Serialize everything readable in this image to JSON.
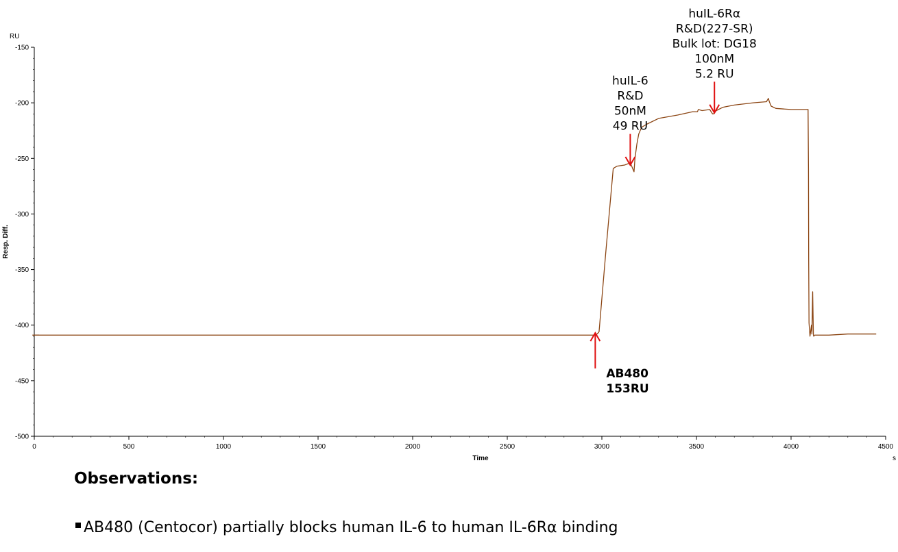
{
  "chart_data": {
    "type": "line",
    "xlabel": "Time",
    "ylabel": "Resp. Diff.",
    "x_unit": "s",
    "y_unit": "RU",
    "xlim": [
      0,
      4500
    ],
    "ylim": [
      -500,
      -150
    ],
    "x_ticks": [
      0,
      500,
      1000,
      1500,
      2000,
      2500,
      3000,
      3500,
      4000,
      4500
    ],
    "y_ticks": [
      -150,
      -200,
      -250,
      -300,
      -350,
      -400,
      -450,
      -500
    ],
    "grid": false,
    "line_color": "#8B4513",
    "arrow_color": "#e01010",
    "series": [
      {
        "x": [
          -10,
          20,
          2940,
          2960,
          2975,
          2985,
          3020,
          3060,
          3080,
          3120,
          3150,
          3160,
          3165,
          3170,
          3175,
          3185,
          3195,
          3210,
          3240,
          3300,
          3400,
          3480,
          3500,
          3505,
          3510,
          3530,
          3570,
          3585,
          3590,
          3595,
          3605,
          3640,
          3700,
          3800,
          3870,
          3880,
          3885,
          3895,
          3920,
          4000,
          4090,
          4092,
          4093,
          4095,
          4100,
          4108,
          4110,
          4114,
          4118,
          4120,
          4125,
          4140,
          4200,
          4300,
          4450
        ],
        "y": [
          -409,
          -409,
          -409,
          -409,
          -408,
          -406,
          -336,
          -259,
          -257,
          -256,
          -254,
          -258,
          -260,
          -262,
          -250,
          -237,
          -228,
          -222,
          -219,
          -214,
          -211,
          -208,
          -208,
          -208,
          -206,
          -207,
          -206,
          -210,
          -210,
          -209,
          -207,
          -204,
          -202,
          -200,
          -199,
          -196,
          -199,
          -203,
          -205,
          -206,
          -206,
          -260,
          -340,
          -398,
          -410,
          -400,
          -408,
          -370,
          -409,
          -410,
          -409,
          -409,
          -409,
          -408,
          -408
        ]
      }
    ],
    "annotations": [
      {
        "lines": [
          "AB480",
          "153RU"
        ],
        "bold": true,
        "arrow_x": 2965,
        "arrow_tip_y": -407,
        "arrow_tail_y": -439,
        "direction": "up"
      },
      {
        "lines": [
          "huIL-6",
          "R&D",
          "50nM",
          "49 RU"
        ],
        "bold": false,
        "arrow_x": 3150,
        "arrow_tip_y": -256,
        "arrow_tail_y": -228,
        "direction": "down"
      },
      {
        "lines": [
          "huIL-6Rα",
          "R&D(227-SR)",
          "Bulk lot: DG18",
          "100nM",
          "5.2 RU"
        ],
        "bold": false,
        "arrow_x": 3595,
        "arrow_tip_y": -209,
        "arrow_tail_y": -181,
        "direction": "down"
      }
    ]
  },
  "observations": {
    "heading": "Observations:",
    "item": "AB480 (Centocor) partially blocks human IL-6 to human IL-6Rα  binding"
  }
}
